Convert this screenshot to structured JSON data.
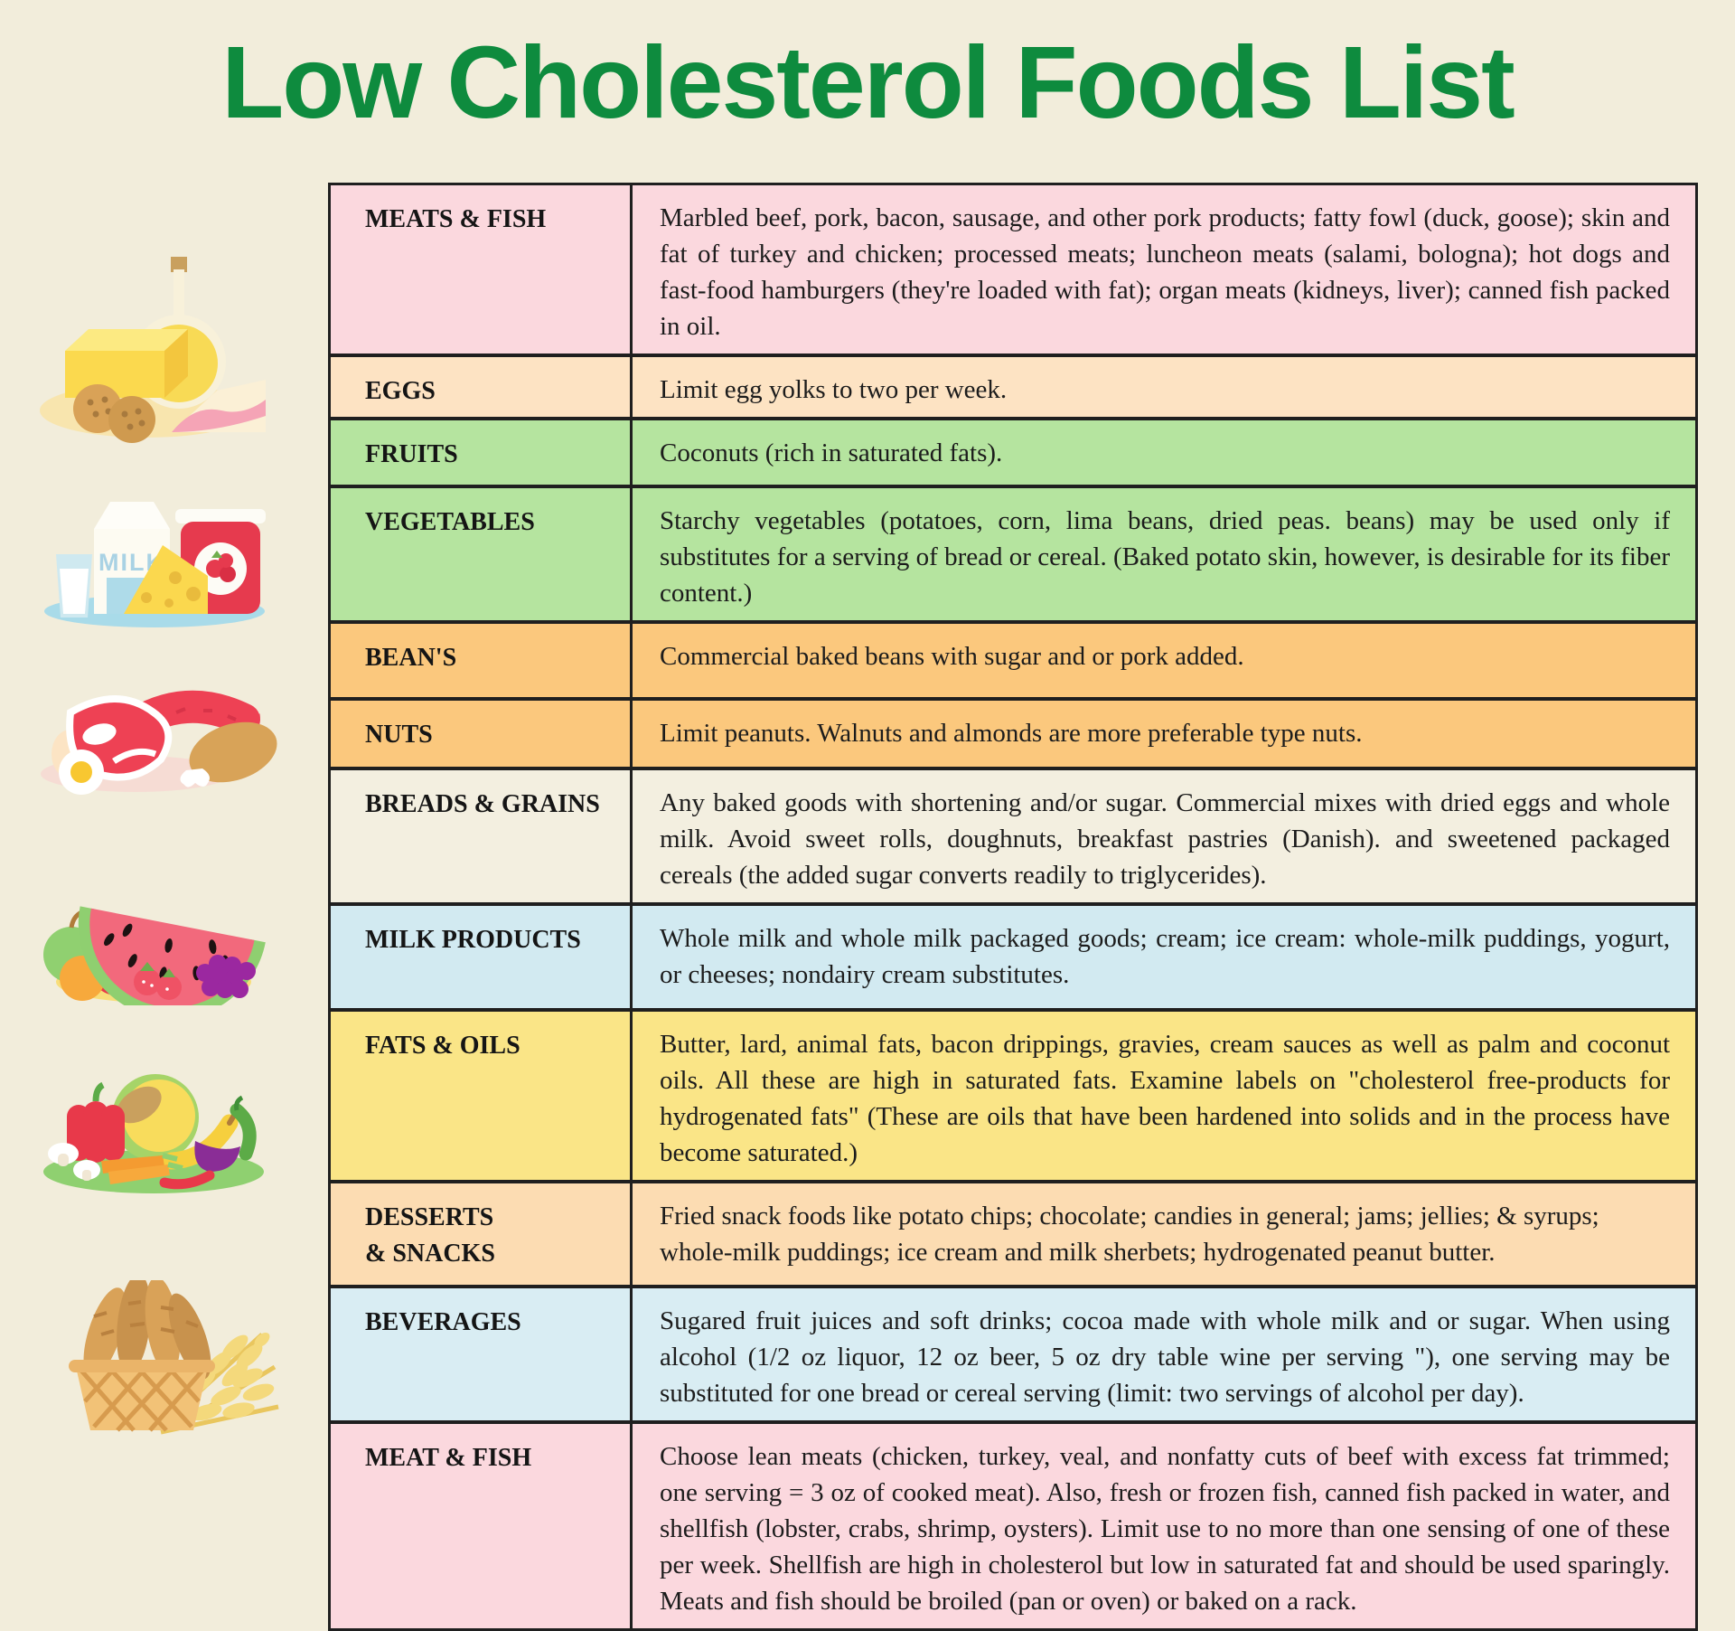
{
  "page": {
    "title": "Low Cholesterol Foods List",
    "colors": {
      "background": "#f2eddb",
      "title_green": "#0e8b3e",
      "table_border": "#1f1f1f"
    }
  },
  "table": {
    "rows": [
      {
        "label": "MEATS & FISH",
        "bg": "#fbd8de",
        "align": "justify",
        "text": "Marbled beef, pork, bacon, sausage, and other pork products; fatty fowl (duck, goose); skin and fat of turkey and chicken; processed meats; luncheon meats (salami, bologna); hot dogs and fast-food hamburgers (they're loaded with fat); organ meats (kidneys, liver); canned fish packed  in oil."
      },
      {
        "label": "EGGS",
        "bg": "#fde3c3",
        "align": "left",
        "text": "Limit egg yolks to two per week."
      },
      {
        "label": "FRUITS",
        "bg": "#b5e49f",
        "align": "left",
        "text": "Coconuts (rich in saturated fats)."
      },
      {
        "label": "VEGETABLES",
        "bg": "#b5e49f",
        "align": "justify",
        "text": "Starchy vegetables (potatoes, corn, lima beans, dried peas. beans) may be used only if substitutes for a serving of bread or cereal. (Baked potato skin, however, is desirable for its fiber content.)"
      },
      {
        "label": "BEAN'S",
        "bg": "#fbc87d",
        "align": "left",
        "text": "Commercial baked beans with sugar and or pork added."
      },
      {
        "label": "NUTS",
        "bg": "#fbc87d",
        "align": "left",
        "text": "Limit peanuts. Walnuts and almonds are more preferable type nuts."
      },
      {
        "label": "BREADS & GRAINS",
        "bg": "#f3efe0",
        "align": "justify",
        "text": "Any baked goods with shortening and/or sugar. Commercial mixes with dried eggs and whole milk. Avoid sweet rolls, doughnuts, breakfast pastries (Danish). and sweetened packaged cereals (the added sugar converts readily to triglycerides)."
      },
      {
        "label": "MILK PRODUCTS",
        "bg": "#d2eaf1",
        "align": "justify",
        "text": "Whole milk and whole milk packaged goods; cream; ice cream: whole-milk puddings, yogurt, or cheeses; nondairy cream substitutes."
      },
      {
        "label": "FATS & OILS",
        "bg": "#fae587",
        "align": "justify",
        "text": "Butter, lard, animal fats, bacon drippings, gravies, cream sauces as well as palm and coconut oils. All these are high in saturated fats. Examine labels on \"cholesterol free-products for hydrogenated fats\" (These are oils that have been hardened into solids and in the process have become saturated.)"
      },
      {
        "label": "DESSERTS\n& SNACKS",
        "bg": "#fcdcb2",
        "align": "left",
        "text": "Fried snack foods like potato chips; chocolate; candies in general; jams; jellies; & syrups; whole-milk puddings; ice cream and milk sherbets; hydrogenated peanut butter."
      },
      {
        "label": "BEVERAGES",
        "bg": "#d9edf3",
        "align": "justify",
        "text": "Sugared fruit juices and soft drinks; cocoa made with whole milk and or sugar. When using alcohol (1/2 oz liquor, 12 oz beer, 5 oz dry table wine per serving \"), one serving may be substituted for one bread or cereal serving (limit: two servings of alcohol per day)."
      },
      {
        "label": "MEAT & FISH",
        "bg": "#fbd8de",
        "align": "justify",
        "text": "Choose lean meats (chicken, turkey, veal, and nonfatty cuts of beef with excess fat trimmed; one serving = 3 oz of cooked meat). Also, fresh or frozen fish, canned fish packed in water, and shellfish (lobster, crabs, shrimp, oysters). Limit use to no more than one sensing of one of these per week. Shellfish are high in cholesterol but low in saturated fat and should be used sparingly. Meats and fish should be broiled (pan or oven) or baked on a rack."
      }
    ]
  },
  "illustrations": {
    "milk_carton_label": "MILK",
    "items": [
      {
        "name": "oil-butter-cookies-sandwich-illustration"
      },
      {
        "name": "milk-glass-jam-cheese-illustration"
      },
      {
        "name": "steak-sausage-egg-drumstick-illustration"
      },
      {
        "name": "watermelon-fruits-grapes-illustration"
      },
      {
        "name": "vegetables-plate-illustration"
      },
      {
        "name": "bread-basket-wheat-illustration"
      }
    ]
  }
}
